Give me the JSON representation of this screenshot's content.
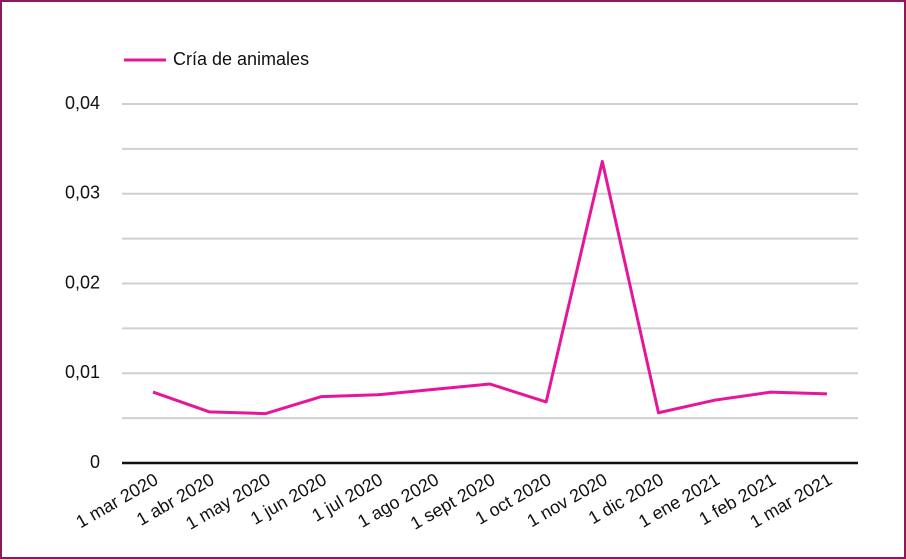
{
  "chart_data": {
    "type": "line",
    "categories": [
      "1 mar 2020",
      "1 abr 2020",
      "1 may 2020",
      "1 jun 2020",
      "1 jul 2020",
      "1 ago 2020",
      "1 sept 2020",
      "1 oct 2020",
      "1 nov 2020",
      "1 dic 2020",
      "1 ene 2021",
      "1 feb 2021",
      "1 mar 2021"
    ],
    "series": [
      {
        "name": "Cría de animales",
        "color": "#e5169a",
        "values": [
          0.0079,
          0.0057,
          0.0055,
          0.0074,
          0.0076,
          0.0082,
          0.0088,
          0.0068,
          0.0336,
          0.0056,
          0.007,
          0.0079,
          0.0077
        ]
      }
    ],
    "ylim": [
      0,
      0.04
    ],
    "yticks": [
      {
        "value": 0,
        "label": "0"
      },
      {
        "value": 0.01,
        "label": "0,01"
      },
      {
        "value": 0.02,
        "label": "0,02"
      },
      {
        "value": 0.03,
        "label": "0,03"
      },
      {
        "value": 0.04,
        "label": "0,04"
      }
    ],
    "minor_yticks": [
      0.005,
      0.015,
      0.025,
      0.035
    ],
    "grid": true,
    "legend": "top-left"
  }
}
